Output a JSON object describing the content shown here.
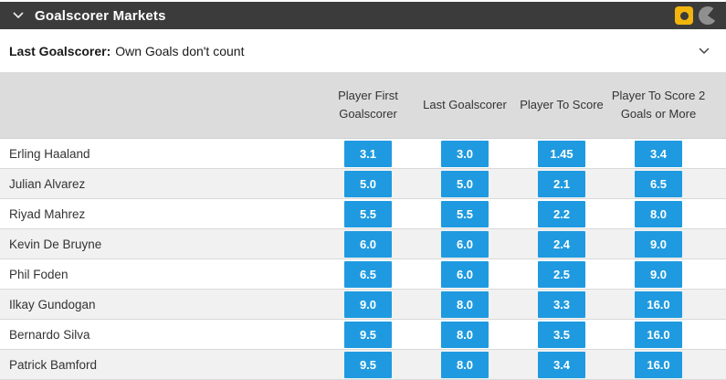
{
  "header": {
    "title": "Goalscorer Markets",
    "collapse_icon": "chevron-down",
    "ball_toggle_icon": "ball-toggle",
    "pie_icon": "pie-chart",
    "colors": {
      "bar": "#3b3b3b",
      "icon_yellow": "#f2b50d",
      "icon_gray": "#8f8f8f"
    }
  },
  "subheader": {
    "label": "Last Goalscorer:",
    "description": "Own Goals don't count",
    "expand_icon": "chevron-down"
  },
  "table": {
    "columns": [
      "Player First Goalscorer",
      "Last Goalscorer",
      "Player To Score",
      "Player To Score 2 Goals or More"
    ],
    "rows": [
      {
        "player": "Erling Haaland",
        "odds": [
          "3.1",
          "3.0",
          "1.45",
          "3.4"
        ]
      },
      {
        "player": "Julian Alvarez",
        "odds": [
          "5.0",
          "5.0",
          "2.1",
          "6.5"
        ]
      },
      {
        "player": "Riyad Mahrez",
        "odds": [
          "5.5",
          "5.5",
          "2.2",
          "8.0"
        ]
      },
      {
        "player": "Kevin De Bruyne",
        "odds": [
          "6.0",
          "6.0",
          "2.4",
          "9.0"
        ]
      },
      {
        "player": "Phil Foden",
        "odds": [
          "6.5",
          "6.0",
          "2.5",
          "9.0"
        ]
      },
      {
        "player": "Ilkay Gundogan",
        "odds": [
          "9.0",
          "8.0",
          "3.3",
          "16.0"
        ]
      },
      {
        "player": "Bernardo Silva",
        "odds": [
          "9.5",
          "8.0",
          "3.5",
          "16.0"
        ]
      },
      {
        "player": "Patrick Bamford",
        "odds": [
          "9.5",
          "8.0",
          "3.4",
          "16.0"
        ]
      }
    ],
    "odds_button_color": "#1f9ae0"
  }
}
